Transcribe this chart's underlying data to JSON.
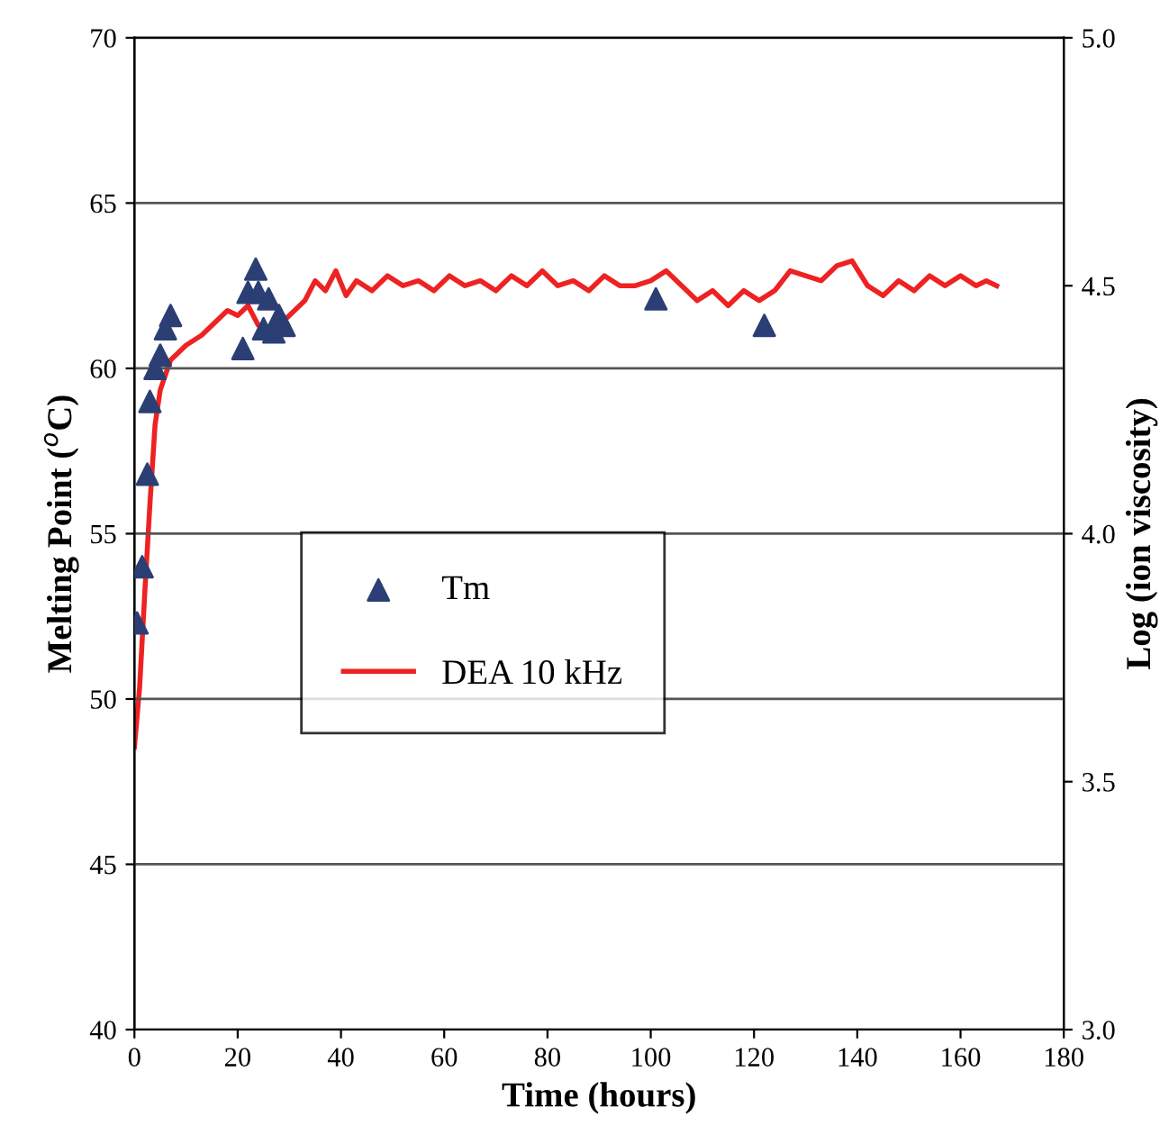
{
  "chart_data": {
    "type": "scatter",
    "xlabel": "Time (hours)",
    "ylabel": "Melting Point ($^{o}$C)",
    "y2label": "Log (ion viscosity)",
    "xlim": [
      0,
      180
    ],
    "xticks": [
      0,
      20,
      40,
      60,
      80,
      100,
      120,
      140,
      160,
      180
    ],
    "ylim": [
      40,
      70
    ],
    "yticks": [
      40,
      45,
      50,
      55,
      60,
      65,
      70
    ],
    "y2lim": [
      3.0,
      5.0
    ],
    "y2ticks": [
      {
        "value": 3.0,
        "label": "3.0"
      },
      {
        "value": 3.5,
        "label": "3.5"
      },
      {
        "value": 4.0,
        "label": "4.0"
      },
      {
        "value": 4.5,
        "label": "4.5"
      },
      {
        "value": 5.0,
        "label": "5.0"
      }
    ],
    "grid": "y",
    "legend": "center",
    "series": [
      {
        "name": "Tm",
        "marker": "triangle",
        "color": "#2b3f74",
        "x": [
          0.5,
          1.5,
          2.5,
          3,
          4,
          5,
          6,
          7,
          21,
          22,
          23.5,
          24,
          25,
          26,
          27,
          28,
          29,
          101,
          122
        ],
        "values": [
          52.3,
          54,
          56.8,
          59,
          60,
          60.4,
          61.2,
          61.6,
          60.6,
          62.3,
          63,
          62.3,
          61.2,
          62.1,
          61.1,
          61.6,
          61.3,
          62.1,
          61.3
        ]
      },
      {
        "name": "DEA 10 kHz",
        "type": "line",
        "axis": "y2",
        "color": "#ee2222",
        "x": [
          0,
          1,
          2,
          3,
          4,
          5,
          7,
          10,
          13,
          15,
          18,
          20,
          22,
          24,
          27,
          30,
          33,
          35,
          37,
          39,
          41,
          43,
          46,
          49,
          52,
          55,
          58,
          61,
          64,
          67,
          70,
          73,
          76,
          79,
          82,
          85,
          88,
          91,
          94,
          97,
          100,
          103,
          106,
          109,
          112,
          115,
          118,
          121,
          124,
          127,
          130,
          133,
          136,
          139,
          142,
          145,
          148,
          151,
          154,
          157,
          160,
          163,
          165,
          167
        ],
        "values": [
          3.57,
          3.69,
          3.88,
          4.06,
          4.22,
          4.29,
          4.35,
          4.38,
          4.4,
          4.42,
          4.45,
          4.44,
          4.46,
          4.42,
          4.41,
          4.44,
          4.47,
          4.51,
          4.49,
          4.53,
          4.48,
          4.51,
          4.49,
          4.52,
          4.5,
          4.51,
          4.49,
          4.52,
          4.5,
          4.51,
          4.49,
          4.52,
          4.5,
          4.53,
          4.5,
          4.51,
          4.49,
          4.52,
          4.5,
          4.5,
          4.51,
          4.53,
          4.5,
          4.47,
          4.49,
          4.46,
          4.49,
          4.47,
          4.49,
          4.53,
          4.52,
          4.51,
          4.54,
          4.55,
          4.5,
          4.48,
          4.51,
          4.49,
          4.52,
          4.5,
          4.52,
          4.5,
          4.51,
          4.5
        ]
      }
    ]
  }
}
